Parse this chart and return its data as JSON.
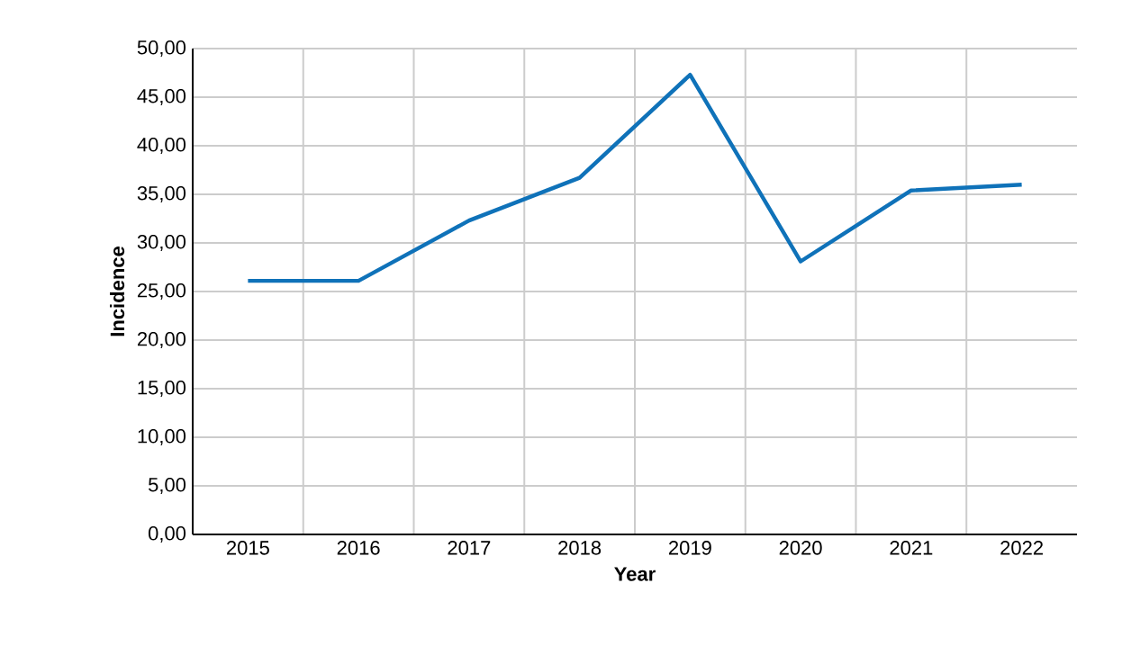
{
  "chart_data": {
    "type": "line",
    "xlabel": "Year",
    "ylabel": "Incidence",
    "categories": [
      "2015",
      "2016",
      "2017",
      "2018",
      "2019",
      "2020",
      "2021",
      "2022"
    ],
    "series": [
      {
        "color": "#0f72b9",
        "values": [
          26.1,
          26.1,
          32.3,
          36.7,
          47.3,
          28.1,
          35.4,
          36.0
        ]
      }
    ],
    "ylim": [
      0,
      50
    ],
    "yticks": [
      {
        "value": 0,
        "label": "0,00"
      },
      {
        "value": 5,
        "label": "5,00"
      },
      {
        "value": 10,
        "label": "10,00"
      },
      {
        "value": 15,
        "label": "15,00"
      },
      {
        "value": 20,
        "label": "20,00"
      },
      {
        "value": 25,
        "label": "25,00"
      },
      {
        "value": 30,
        "label": "30,00"
      },
      {
        "value": 35,
        "label": "35,00"
      },
      {
        "value": 40,
        "label": "40,00"
      },
      {
        "value": 45,
        "label": "45,00"
      },
      {
        "value": 50,
        "label": "50,00"
      }
    ],
    "grid": true,
    "marker": "none",
    "line_style": "solid"
  }
}
